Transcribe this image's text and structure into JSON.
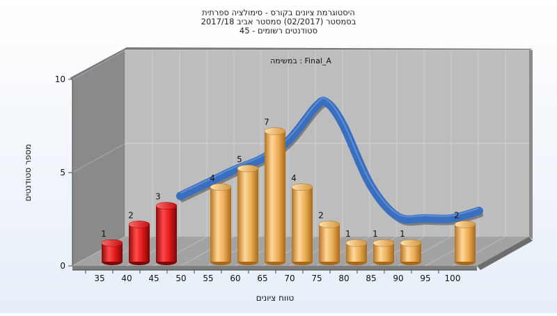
{
  "chart_data": {
    "type": "bar",
    "title_lines": [
      "היסטוגרמת ציונים בקורס - סימולציה ספרתית",
      "בסמסטר  (02/2017)  סמסטר אביב 2017/18",
      "סטודנטים רשומים - 45"
    ],
    "subtitle": "במשימה : Final_A",
    "xlabel": "טווח ציונים",
    "ylabel": "מספר סטודנטים",
    "ylim": [
      0,
      10
    ],
    "y_ticks": [
      "0",
      "5",
      "10"
    ],
    "categories": [
      "35",
      "40",
      "45",
      "50",
      "55",
      "60",
      "65",
      "70",
      "75",
      "80",
      "85",
      "90",
      "95",
      "100"
    ],
    "bars": [
      {
        "x": 35,
        "value": 1,
        "label": "1",
        "color": "#d81414"
      },
      {
        "x": 40,
        "value": 2,
        "label": "2",
        "color": "#d81414"
      },
      {
        "x": 45,
        "value": 3,
        "label": "3",
        "color": "#d81414"
      },
      {
        "x": 55,
        "value": 4,
        "label": "4",
        "color": "#e8a54a"
      },
      {
        "x": 60,
        "value": 5,
        "label": "5",
        "color": "#e8a54a"
      },
      {
        "x": 65,
        "value": 7,
        "label": "7",
        "color": "#e8a54a"
      },
      {
        "x": 70,
        "value": 4,
        "label": "4",
        "color": "#e8a54a"
      },
      {
        "x": 75,
        "value": 2,
        "label": "2",
        "color": "#e8a54a"
      },
      {
        "x": 80,
        "value": 1,
        "label": "1",
        "color": "#e8a54a"
      },
      {
        "x": 85,
        "value": 1,
        "label": "1",
        "color": "#e8a54a"
      },
      {
        "x": 90,
        "value": 1,
        "label": "1",
        "color": "#e8a54a"
      },
      {
        "x": 100,
        "value": 2,
        "label": "2",
        "color": "#e8a54a"
      }
    ],
    "curve": {
      "color": "#3a6fbf",
      "x": [
        45,
        50,
        55,
        60,
        65,
        70,
        72,
        75,
        80,
        85,
        90,
        95,
        100
      ],
      "y": [
        3.0,
        3.7,
        4.4,
        5.0,
        6.0,
        7.8,
        8.0,
        6.8,
        3.6,
        1.9,
        1.8,
        1.8,
        2.2
      ]
    },
    "grid": true,
    "legend": "none"
  }
}
